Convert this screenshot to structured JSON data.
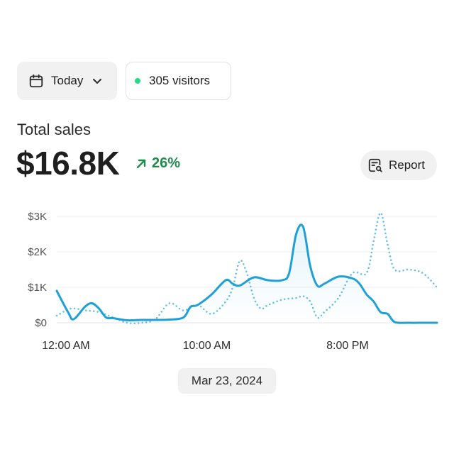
{
  "filter": {
    "label": "Today",
    "icon": "calendar-icon",
    "chevron_icon": "chevron-down-icon"
  },
  "visitors": {
    "label": "305 visitors",
    "dot_color": "#2dd48a"
  },
  "summary": {
    "title": "Total sales",
    "value": "$16.8K",
    "change": "26%",
    "change_color": "#1e8a4c",
    "change_icon": "arrow-up-right-icon"
  },
  "report": {
    "label": "Report",
    "icon": "report-search-icon"
  },
  "date_label": "Mar 23, 2024",
  "colors": {
    "primary": "#1fa0d6",
    "comparison": "#6cc0e8"
  },
  "chart_data": {
    "type": "line",
    "ylim": [
      0,
      3000
    ],
    "y_ticks": [
      {
        "value": 0,
        "label": "$0"
      },
      {
        "value": 1000,
        "label": "$1K"
      },
      {
        "value": 2000,
        "label": "$2K"
      },
      {
        "value": 3000,
        "label": "$3K"
      }
    ],
    "x_range": [
      0,
      24
    ],
    "x_ticks": [
      {
        "value": 0.5,
        "label": "12:00 AM"
      },
      {
        "value": 10.5,
        "label": "10:00 AM"
      },
      {
        "value": 20.5,
        "label": "8:00 PM"
      }
    ],
    "series": [
      {
        "style": "solid",
        "points": [
          [
            0,
            900
          ],
          [
            0.8,
            300
          ],
          [
            1.2,
            100
          ],
          [
            2,
            450
          ],
          [
            2.5,
            550
          ],
          [
            3,
            400
          ],
          [
            3.5,
            150
          ],
          [
            4,
            130
          ],
          [
            5,
            70
          ],
          [
            6,
            80
          ],
          [
            7,
            80
          ],
          [
            8,
            90
          ],
          [
            9,
            150
          ],
          [
            9.5,
            450
          ],
          [
            10,
            500
          ],
          [
            11,
            800
          ],
          [
            12,
            1200
          ],
          [
            12.5,
            1100
          ],
          [
            13,
            1050
          ],
          [
            14,
            1280
          ],
          [
            15,
            1200
          ],
          [
            16,
            1200
          ],
          [
            16.5,
            1400
          ],
          [
            17,
            2500
          ],
          [
            17.5,
            2700
          ],
          [
            18,
            1600
          ],
          [
            18.5,
            1050
          ],
          [
            19,
            1100
          ],
          [
            20,
            1300
          ],
          [
            21,
            1250
          ],
          [
            21.5,
            1100
          ],
          [
            22,
            800
          ],
          [
            22.5,
            600
          ],
          [
            23,
            300
          ],
          [
            23.5,
            250
          ],
          [
            24,
            20
          ],
          [
            25,
            0
          ],
          [
            26,
            0
          ],
          [
            27,
            0
          ]
        ]
      },
      {
        "style": "dotted",
        "points": [
          [
            0,
            200
          ],
          [
            1,
            400
          ],
          [
            2,
            350
          ],
          [
            3,
            300
          ],
          [
            4,
            150
          ],
          [
            5,
            0
          ],
          [
            6,
            0
          ],
          [
            7,
            100
          ],
          [
            8,
            550
          ],
          [
            9,
            350
          ],
          [
            10,
            500
          ],
          [
            11,
            250
          ],
          [
            12,
            600
          ],
          [
            12.5,
            1000
          ],
          [
            13,
            1750
          ],
          [
            13.5,
            1400
          ],
          [
            14,
            700
          ],
          [
            14.5,
            400
          ],
          [
            15,
            500
          ],
          [
            16,
            650
          ],
          [
            17,
            700
          ],
          [
            17.5,
            750
          ],
          [
            18,
            600
          ],
          [
            18.5,
            150
          ],
          [
            19,
            300
          ],
          [
            20,
            700
          ],
          [
            21,
            1400
          ],
          [
            22,
            1400
          ],
          [
            22.5,
            2300
          ],
          [
            23,
            3100
          ],
          [
            23.5,
            2200
          ],
          [
            24,
            1500
          ],
          [
            25,
            1500
          ],
          [
            26,
            1400
          ],
          [
            27,
            1000
          ]
        ]
      }
    ]
  }
}
